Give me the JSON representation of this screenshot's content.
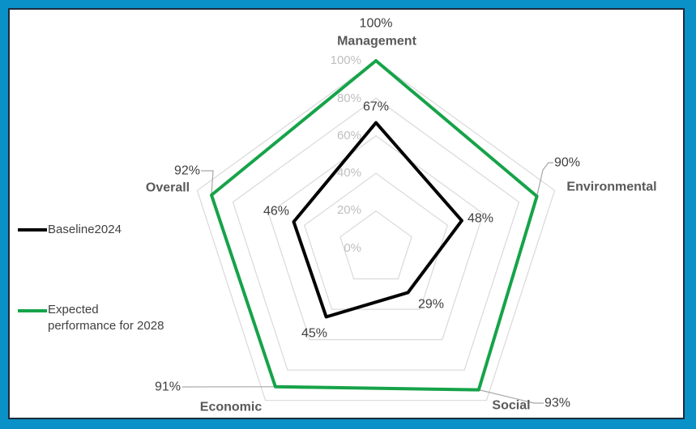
{
  "frame": {
    "border_color": "#0A91C7",
    "inner_border_color": "#1E2B3C",
    "background": "#FFFFFF"
  },
  "chart_data": {
    "type": "radar",
    "categories": [
      "Management",
      "Environmental",
      "Social",
      "Economic",
      "Overall"
    ],
    "series": [
      {
        "name": "Baseline2024",
        "color": "#000000",
        "values": [
          67,
          48,
          29,
          45,
          46
        ]
      },
      {
        "name": "Expected performance for 2028",
        "color": "#16A349",
        "values": [
          100,
          90,
          93,
          91,
          92
        ]
      }
    ],
    "axis": {
      "min": 0,
      "max": 100,
      "step": 20,
      "tick_labels": [
        "0%",
        "20%",
        "40%",
        "60%",
        "80%",
        "100%"
      ]
    },
    "grid": {
      "color": "#D9D9D9",
      "shape": "pentagon",
      "spokes": false
    },
    "legend_position": "left",
    "data_labels": {
      "baseline": [
        "67%",
        "48%",
        "29%",
        "45%",
        "46%"
      ],
      "expected": [
        "100%",
        "90%",
        "93%",
        "91%",
        "92%"
      ]
    }
  },
  "legend": {
    "items": [
      {
        "label": "Baseline2024",
        "color": "#000000",
        "lines": [
          "Baseline2024"
        ]
      },
      {
        "label": "Expected performance for 2028",
        "color": "#16A349",
        "lines": [
          "Expected",
          "performance for 2028"
        ]
      }
    ]
  }
}
